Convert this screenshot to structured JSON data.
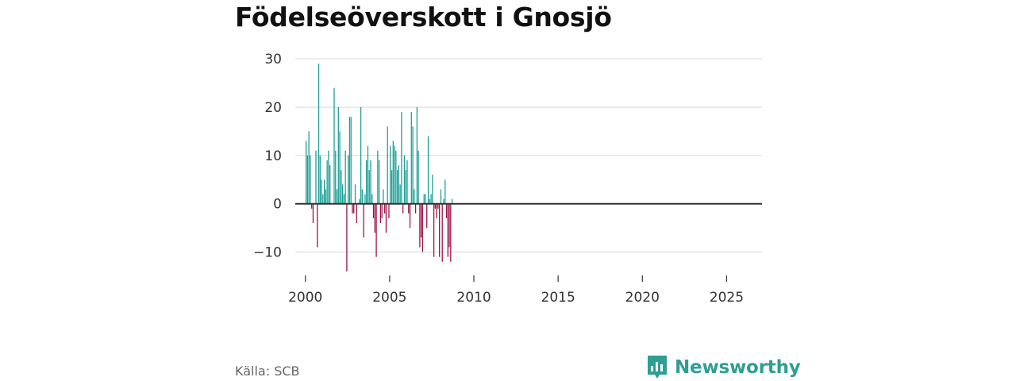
{
  "chart_data": {
    "type": "bar",
    "title": "Födelseöverskott i Gnosjö",
    "xlabel": "",
    "ylabel": "",
    "ylim": [
      -15,
      32
    ],
    "xlim": [
      1999.4,
      2027.1
    ],
    "yticks": [
      30,
      20,
      10,
      0,
      -10
    ],
    "ytick_labels": [
      "30",
      "20",
      "10",
      "0",
      "−10"
    ],
    "xticks": [
      2000,
      2005,
      2010,
      2015,
      2020,
      2025
    ],
    "xtick_labels": [
      "2000",
      "2005",
      "2010",
      "2015",
      "2020",
      "2025"
    ],
    "grid": true,
    "positive_color": "#1a9e96",
    "negative_color": "#9e0e44",
    "series": [
      {
        "name": "Födelseöverskott",
        "frequency": "monthly",
        "start": "2000-01",
        "values": [
          13,
          10,
          15,
          10,
          -1,
          -4,
          0,
          11,
          -9,
          29,
          10,
          5,
          2,
          5,
          3,
          9,
          11,
          8,
          0,
          0,
          24,
          11,
          3,
          20,
          15,
          7,
          4,
          2,
          11,
          -14,
          10,
          18,
          18,
          -2,
          -2,
          4,
          -4,
          0,
          1,
          20,
          3,
          -7,
          2,
          9,
          12,
          7,
          9,
          2,
          -3,
          -6,
          -11,
          11,
          9,
          -4,
          -3,
          3,
          -2,
          -6,
          16,
          -3,
          12,
          7,
          13,
          12,
          11,
          7,
          8,
          4,
          19,
          -2,
          10,
          7,
          9,
          -2,
          -5,
          19,
          16,
          3,
          -2,
          20,
          11,
          -9,
          -7,
          -10,
          2,
          2,
          -5,
          14,
          1,
          2,
          6,
          -11,
          -1,
          -3,
          -1,
          -11,
          3,
          -12,
          1,
          5,
          -3,
          -11,
          -9,
          -12,
          1
        ]
      }
    ]
  },
  "source": "Källa: SCB",
  "brand": {
    "name": "Newsworthy",
    "color": "#2f9e93"
  }
}
